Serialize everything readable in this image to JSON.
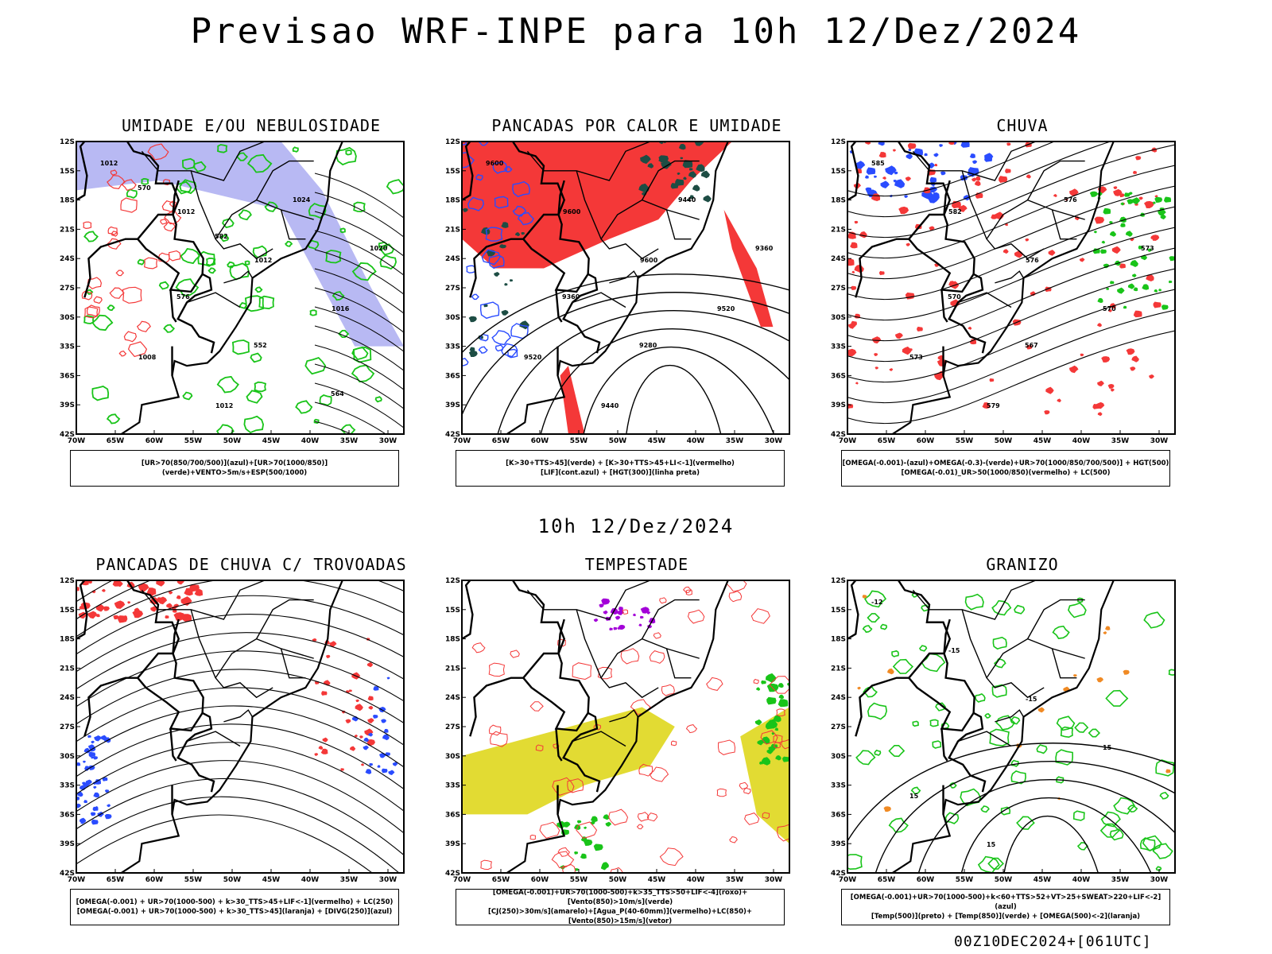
{
  "header": {
    "title": "Previsao WRF-INPE  para 10h 12/Dez/2024",
    "mid_time": "10h 12/Dez/2024",
    "footer": "00Z10DEC2024+[061UTC]"
  },
  "axes": {
    "lat_labels": [
      "12S",
      "15S",
      "18S",
      "21S",
      "24S",
      "27S",
      "30S",
      "33S",
      "36S",
      "39S",
      "42S"
    ],
    "lon_labels": [
      "70W",
      "65W",
      "60W",
      "55W",
      "50W",
      "45W",
      "40W",
      "35W",
      "30W"
    ]
  },
  "panels": [
    {
      "title": "UMIDADE E/OU NEBULOSIDADE",
      "legend": [
        "[UR>70(850/700/500)](azul)+[UR>70(1000/850)](verde)+VENTO>5m/s+ESP(500/1000)"
      ],
      "contour_labels": [
        "1012",
        "1012",
        "1012",
        "1016",
        "1008",
        "1012",
        "1024",
        "1020",
        "576",
        "552",
        "564",
        "570",
        "582"
      ]
    },
    {
      "title": "PANCADAS POR CALOR E UMIDADE",
      "legend": [
        "[K>30+TTS>45](verde) + [K>30+TTS>45+LI<-1](vermelho)",
        "[LIF](cont.azul) + [HGT(300)](linha preta)"
      ],
      "contour_labels": [
        "9600",
        "9600",
        "9600",
        "9520",
        "9520",
        "9440",
        "9440",
        "9360",
        "9360",
        "9280"
      ]
    },
    {
      "title": "CHUVA",
      "legend": [
        "[OMEGA(-0.001)-(azul)+OMEGA(-0.3)-(verde)+UR>70(1000/850/700/500)] + HGT(500)",
        "[OMEGA(-0.01)_UR>50(1000/850)(vermelho) + LC(500)"
      ],
      "contour_labels": [
        "585",
        "582",
        "576",
        "570",
        "573",
        "579",
        "576",
        "573",
        "570",
        "567"
      ]
    },
    {
      "title": "PANCADAS DE CHUVA C/ TROVOADAS",
      "legend": [
        "[OMEGA(-0.001) + UR>70(1000-500) + k>30_TTS>45+LIF<-1](vermelho) + LC(250)",
        "[OMEGA(-0.001) + UR>70(1000-500) + k>30_TTS>45](laranja) + [DIVG(250)](azul)"
      ],
      "contour_labels": []
    },
    {
      "title": "TEMPESTADE",
      "legend": [
        "[OMEGA(-0.001)+UR>70(1000-500)+k>35_TTS>50+LIF<-4](roxo)+[Vento(850)>10m/s](verde)",
        "[CJ(250)>30m/s](amarelo)+[Agua_P(40-60mm)](vermelho)+LC(850)+[Vento(850)>15m/s](vetor)"
      ],
      "contour_labels": []
    },
    {
      "title": "GRANIZO",
      "legend": [
        "[OMEGA(-0.001)+UR>70(1000-500)+k<60+TTS>52+VT>25+SWEAT>220+LIF<-2](azul)",
        "[Temp(500)](preto) + [Temp(850)](verde) + [OMEGA(500)<-2](laranja)"
      ],
      "contour_labels": [
        "-12",
        "-15",
        "-15",
        "15",
        "15",
        "15"
      ]
    }
  ],
  "colors": {
    "blue": "#2a4cff",
    "green": "#19c419",
    "red": "#f43838",
    "orange": "#f08a24",
    "yellow": "#e2db33",
    "purple": "#a300d8",
    "lavender": "#a6a8f0",
    "darkteal": "#1d4d44"
  }
}
